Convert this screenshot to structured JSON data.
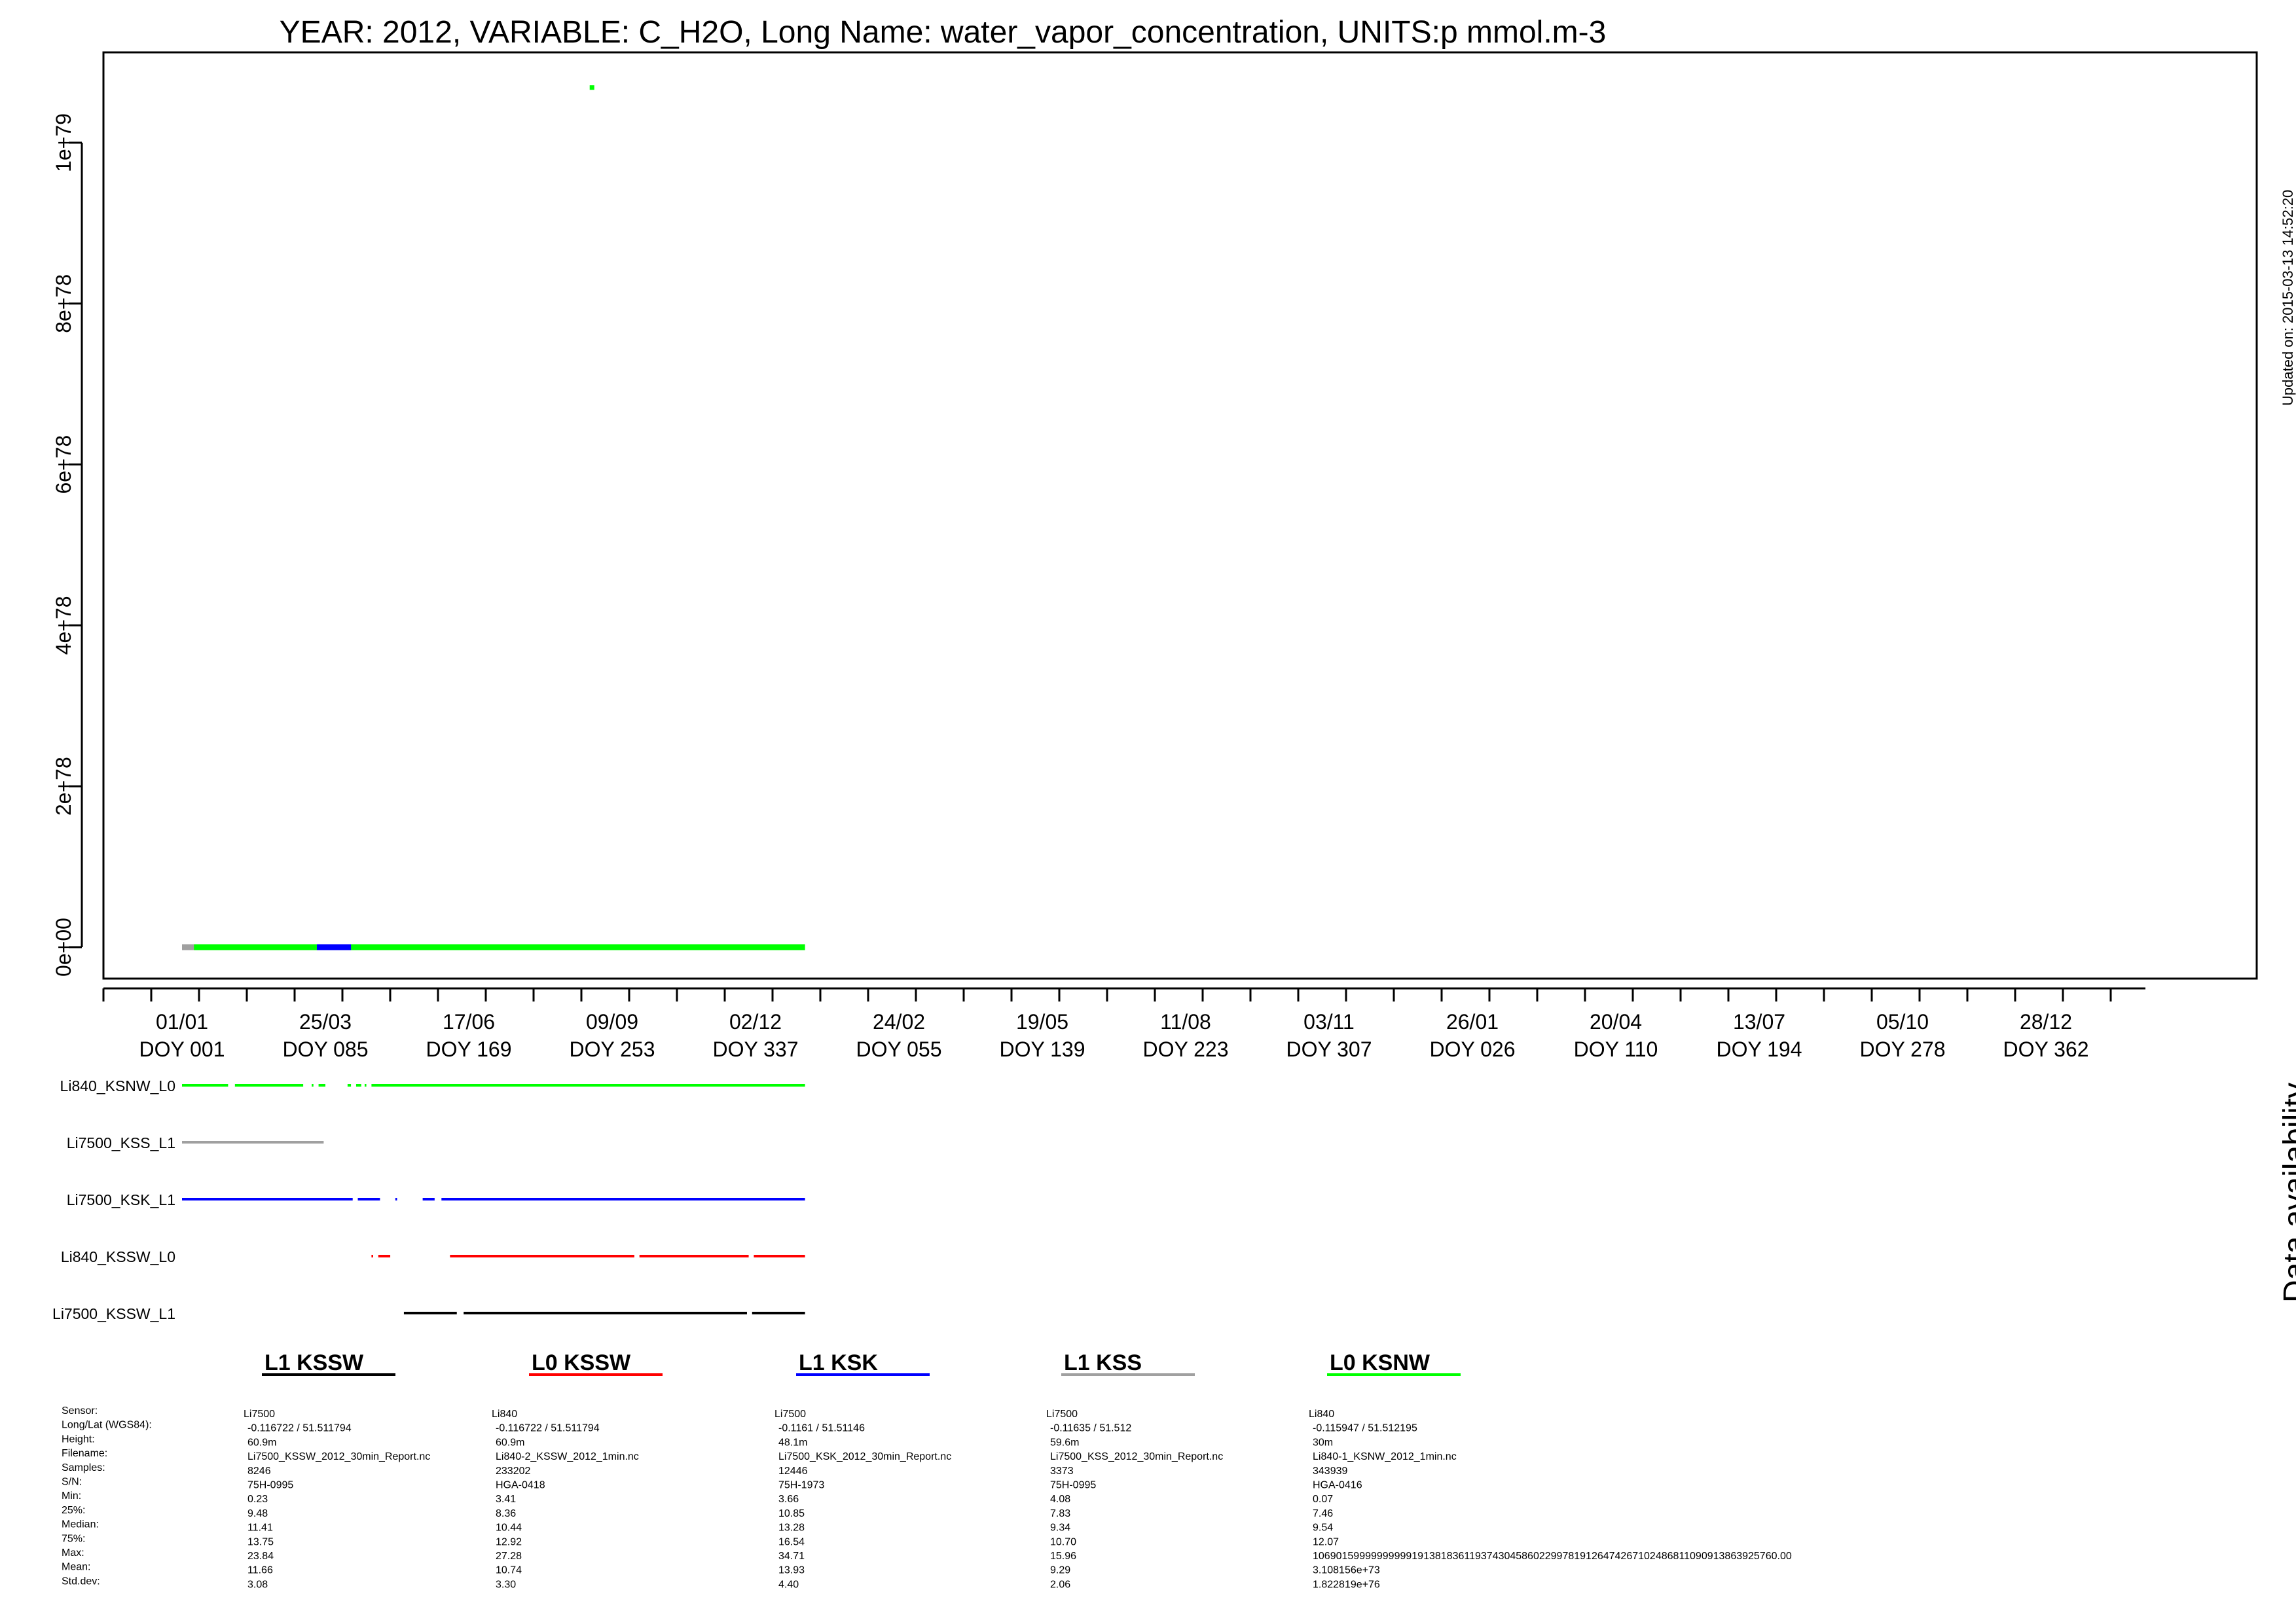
{
  "header": {
    "title": "YEAR: 2012, VARIABLE: C_H2O, Long Name: water_vapor_concentration, UNITS:p mmol.m-3",
    "updated": "Updated on: 2015-03-13 14:52:20"
  },
  "chart_data": {
    "type": "scatter",
    "title": "YEAR: 2012, VARIABLE: C_H2O, Long Name: water_vapor_concentration, UNITS:p mmol.m-3",
    "xlabel": "",
    "ylabel": "",
    "ylim": [
      0,
      1.1e+79
    ],
    "y_ticks": [
      {
        "value": 0,
        "label": "0e+00"
      },
      {
        "value": 2e+78,
        "label": "2e+78"
      },
      {
        "value": 4e+78,
        "label": "4e+78"
      },
      {
        "value": 6e+78,
        "label": "6e+78"
      },
      {
        "value": 8e+78,
        "label": "8e+78"
      },
      {
        "value": 1e+79,
        "label": "1e+79"
      }
    ],
    "x_ticks": [
      {
        "day": 1,
        "date": "01/01",
        "doy": "DOY 001"
      },
      {
        "day": 85,
        "date": "25/03",
        "doy": "DOY 085"
      },
      {
        "day": 169,
        "date": "17/06",
        "doy": "DOY 169"
      },
      {
        "day": 253,
        "date": "09/09",
        "doy": "DOY 253"
      },
      {
        "day": 337,
        "date": "02/12",
        "doy": "DOY 337"
      },
      {
        "day": 421,
        "date": "24/02",
        "doy": "DOY 055"
      },
      {
        "day": 505,
        "date": "19/05",
        "doy": "DOY 139"
      },
      {
        "day": 589,
        "date": "11/08",
        "doy": "DOY 223"
      },
      {
        "day": 673,
        "date": "03/11",
        "doy": "DOY 307"
      },
      {
        "day": 757,
        "date": "26/01",
        "doy": "DOY 026"
      },
      {
        "day": 841,
        "date": "20/04",
        "doy": "DOY 110"
      },
      {
        "day": 925,
        "date": "13/07",
        "doy": "DOY 194"
      },
      {
        "day": 1009,
        "date": "05/10",
        "doy": "DOY 278"
      },
      {
        "day": 1093,
        "date": "28/12",
        "doy": "DOY 362"
      }
    ],
    "series": [
      {
        "name": "L0 KSNW",
        "color": "#00ff00",
        "x_start": 1,
        "x_end": 366,
        "y": 0,
        "outlier": {
          "day": 241,
          "value": 1.069e+79
        }
      },
      {
        "name": "L1 KSK",
        "color": "#0000ff",
        "x_start": 80,
        "x_end": 100,
        "y": 0
      },
      {
        "name": "L1 KSS",
        "color": "#a0a0a0",
        "x_start": 1,
        "x_end": 8,
        "y": 0
      }
    ],
    "grid": false
  },
  "availability": {
    "title": "Data availability",
    "rows": [
      {
        "label": "Li840_KSNW_L0",
        "color": "#00ff00",
        "segments": [
          [
            1,
            28
          ],
          [
            32,
            72
          ],
          [
            77,
            78
          ],
          [
            81,
            85
          ],
          [
            98,
            100
          ],
          [
            103,
            106
          ],
          [
            108,
            109
          ],
          [
            112,
            366
          ]
        ]
      },
      {
        "label": "Li7500_KSS_L1",
        "color": "#a0a0a0",
        "segments": [
          [
            1,
            84
          ]
        ]
      },
      {
        "label": "Li7500_KSK_L1",
        "color": "#0000ff",
        "segments": [
          [
            1,
            101
          ],
          [
            104,
            117
          ],
          [
            126,
            127
          ],
          [
            142,
            149
          ],
          [
            153,
            366
          ]
        ]
      },
      {
        "label": "Li840_KSSW_L0",
        "color": "#ff0000",
        "segments": [
          [
            112,
            113
          ],
          [
            116,
            123
          ],
          [
            158,
            266
          ],
          [
            269,
            333
          ],
          [
            336,
            366
          ]
        ]
      },
      {
        "label": "Li7500_KSSW_L1",
        "color": "#000000",
        "segments": [
          [
            131,
            162
          ],
          [
            166,
            332
          ],
          [
            335,
            366
          ]
        ]
      }
    ]
  },
  "sensor_table": {
    "labels": [
      "Sensor:",
      "Long/Lat (WGS84):",
      "Height:",
      "Filename:",
      "Samples:",
      "S/N:",
      "Min:",
      "25%:",
      "Median:",
      "75%:",
      "Max:",
      "Mean:",
      "Std.dev:"
    ],
    "columns": [
      {
        "heading": "L1 KSSW",
        "color": "#000000",
        "values": [
          "Li7500",
          "-0.116722 / 51.511794",
          "60.9m",
          "Li7500_KSSW_2012_30min_Report.nc",
          "8246",
          "75H-0995",
          "0.23",
          "9.48",
          "11.41",
          "13.75",
          "23.84",
          "11.66",
          "3.08"
        ]
      },
      {
        "heading": "L0 KSSW",
        "color": "#ff0000",
        "values": [
          "Li840",
          "-0.116722 / 51.511794",
          "60.9m",
          "Li840-2_KSSW_2012_1min.nc",
          "233202",
          "HGA-0418",
          "3.41",
          "8.36",
          "10.44",
          "12.92",
          "27.28",
          "10.74",
          "3.30"
        ]
      },
      {
        "heading": "L1 KSK",
        "color": "#0000ff",
        "values": [
          "Li7500",
          "-0.1161 / 51.51146",
          "48.1m",
          "Li7500_KSK_2012_30min_Report.nc",
          "12446",
          "75H-1973",
          "3.66",
          "10.85",
          "13.28",
          "16.54",
          "34.71",
          "13.93",
          "4.40"
        ]
      },
      {
        "heading": "L1 KSS",
        "color": "#a0a0a0",
        "values": [
          "Li7500",
          "-0.11635 / 51.512",
          "59.6m",
          "Li7500_KSS_2012_30min_Report.nc",
          "3373",
          "75H-0995",
          "4.08",
          "7.83",
          "9.34",
          "10.70",
          "15.96",
          "9.29",
          "2.06"
        ]
      },
      {
        "heading": "L0 KSNW",
        "color": "#00ff00",
        "values": [
          "Li840",
          "-0.115947 / 51.512195",
          "30m",
          "Li840-1_KSNW_2012_1min.nc",
          "343939",
          "HGA-0416",
          "0.07",
          "7.46",
          "9.54",
          "12.07",
          "10690159999999999191381836119374304586022997819126474267102486811090913863925760.00",
          "3.108156e+73",
          "1.822819e+76"
        ]
      }
    ]
  }
}
